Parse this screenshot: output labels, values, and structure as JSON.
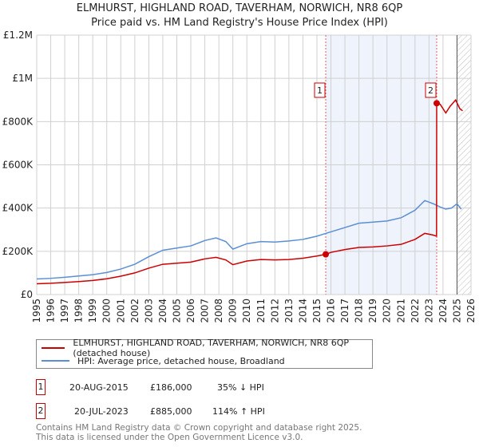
{
  "chart_data": {
    "type": "line",
    "title": "ELMHURST, HIGHLAND ROAD, TAVERHAM, NORWICH, NR8 6QP",
    "subtitle": "Price paid vs. HM Land Registry's House Price Index (HPI)",
    "xlim": [
      1995,
      2026
    ],
    "ylim": [
      0,
      1200000
    ],
    "x_ticks": [
      "1995",
      "1996",
      "1997",
      "1998",
      "1999",
      "2000",
      "2001",
      "2002",
      "2003",
      "2004",
      "2005",
      "2006",
      "2007",
      "2008",
      "2009",
      "2010",
      "2011",
      "2012",
      "2013",
      "2014",
      "2015",
      "2016",
      "2017",
      "2018",
      "2019",
      "2020",
      "2021",
      "2022",
      "2023",
      "2024",
      "2025",
      "2026"
    ],
    "y_ticks": [
      {
        "v": 0,
        "label": "£0"
      },
      {
        "v": 200000,
        "label": "£200K"
      },
      {
        "v": 400000,
        "label": "£400K"
      },
      {
        "v": 600000,
        "label": "£600K"
      },
      {
        "v": 800000,
        "label": "£800K"
      },
      {
        "v": 1000000,
        "label": "£1M"
      },
      {
        "v": 1200000,
        "label": "£1.2M"
      }
    ],
    "series": [
      {
        "name": "ELMHURST, HIGHLAND ROAD, TAVERHAM, NORWICH, NR8 6QP (detached house)",
        "color": "#cc0000",
        "x": [
          1995,
          1996,
          1997,
          1998,
          1999,
          2000,
          2001,
          2002,
          2003,
          2004,
          2005,
          2006,
          2007,
          2007.8,
          2008.5,
          2009,
          2010,
          2011,
          2012,
          2013,
          2014,
          2015,
          2015.63,
          2016,
          2017,
          2018,
          2019,
          2020,
          2021,
          2022,
          2022.7,
          2023.3,
          2023.54,
          2023.55,
          2023.8,
          2024.2,
          2024.5,
          2024.9,
          2025.2,
          2025.4
        ],
        "y": [
          50000,
          52000,
          56000,
          60000,
          65000,
          73000,
          85000,
          100000,
          122000,
          140000,
          145000,
          150000,
          165000,
          172000,
          160000,
          138000,
          155000,
          162000,
          160000,
          162000,
          168000,
          178000,
          186000,
          195000,
          208000,
          218000,
          220000,
          225000,
          232000,
          255000,
          283000,
          275000,
          270000,
          885000,
          880000,
          840000,
          870000,
          900000,
          860000,
          850000
        ]
      },
      {
        "name": "HPI: Average price, detached house, Broadland",
        "color": "#5b8fd4",
        "x": [
          1995,
          1996,
          1997,
          1998,
          1999,
          2000,
          2001,
          2002,
          2003,
          2004,
          2005,
          2006,
          2007,
          2007.8,
          2008.5,
          2009,
          2010,
          2011,
          2012,
          2013,
          2014,
          2015,
          2016,
          2017,
          2018,
          2019,
          2020,
          2021,
          2022,
          2022.7,
          2023.3,
          2023.8,
          2024.2,
          2024.6,
          2025,
          2025.3
        ],
        "y": [
          72000,
          75000,
          80000,
          86000,
          92000,
          102000,
          118000,
          140000,
          175000,
          205000,
          215000,
          225000,
          250000,
          262000,
          245000,
          210000,
          235000,
          245000,
          243000,
          248000,
          255000,
          270000,
          290000,
          310000,
          330000,
          335000,
          340000,
          355000,
          390000,
          435000,
          420000,
          405000,
          395000,
          400000,
          420000,
          395000
        ]
      }
    ],
    "shaded_range": [
      2015.63,
      2023.55
    ],
    "hatched_from": 2025.0,
    "markers": [
      {
        "label": "1",
        "x": 2015.63,
        "y": 186000
      },
      {
        "label": "2",
        "x": 2023.55,
        "y": 885000
      }
    ],
    "legend": "bottom"
  },
  "transactions": [
    {
      "num": "1",
      "date": "20-AUG-2015",
      "price": "£186,000",
      "hpi": "35% ↓ HPI"
    },
    {
      "num": "2",
      "date": "20-JUL-2023",
      "price": "£885,000",
      "hpi": "114% ↑ HPI"
    }
  ],
  "footer": {
    "line1": "Contains HM Land Registry data © Crown copyright and database right 2025.",
    "line2": "This data is licensed under the Open Government Licence v3.0."
  }
}
